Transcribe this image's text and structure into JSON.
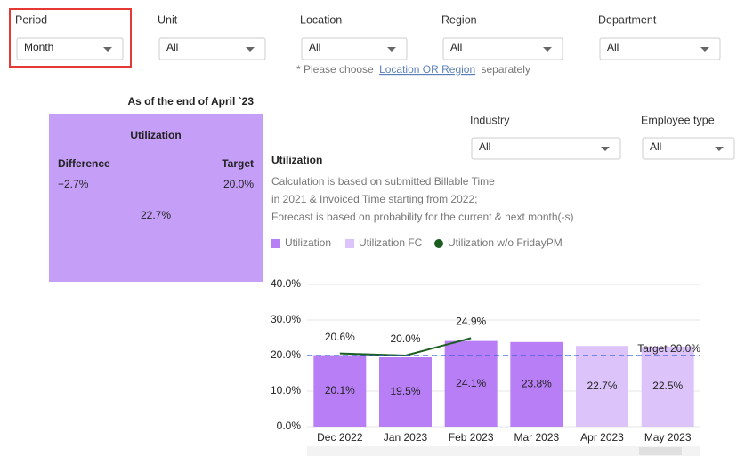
{
  "filters": [
    {
      "label": "Period",
      "value": "Month"
    },
    {
      "label": "Unit",
      "value": "All"
    },
    {
      "label": "Location",
      "value": "All"
    },
    {
      "label": "Region",
      "value": "All"
    },
    {
      "label": "Department",
      "value": "All"
    },
    {
      "label": "Industry",
      "value": "All"
    },
    {
      "label": "Employee type",
      "value": "All"
    }
  ],
  "note": {
    "prefix": "* Please choose",
    "link": "Location OR Region",
    "suffix": "separately"
  },
  "kpi": {
    "as_of": "As of the end of April `23",
    "title": "Utilization",
    "difference_label": "Difference",
    "difference": "+2.7%",
    "target_label": "Target",
    "target": "20.0%",
    "value": "22.7%"
  },
  "chart_data": {
    "type": "bar",
    "title": "Utilization",
    "description": [
      "Calculation is based on submitted Billable Time",
      "in 2021 & Invoiced Time starting from 2022;",
      "Forecast is based on probability for the current & next month(-s)"
    ],
    "categories": [
      "Dec 2022",
      "Jan 2023",
      "Feb 2023",
      "Mar 2023",
      "Apr 2023",
      "May 2023"
    ],
    "series": [
      {
        "name": "Utilization",
        "color": "#b77ef5",
        "values": [
          20.1,
          19.5,
          24.1,
          23.8,
          null,
          null
        ],
        "value_labels": [
          "20.1%",
          "19.5%",
          "24.1%",
          "23.8%",
          null,
          null
        ]
      },
      {
        "name": "Utilization FC",
        "color": "#dcc4fb",
        "values": [
          null,
          null,
          null,
          null,
          22.7,
          22.5
        ],
        "value_labels": [
          null,
          null,
          null,
          null,
          "22.7%",
          "22.5%"
        ]
      },
      {
        "name": "Utilization w/o FridayPM",
        "type": "line",
        "color": "#1b5e20",
        "values": [
          20.6,
          20.0,
          24.9,
          null,
          null,
          null
        ],
        "value_labels": [
          "20.6%",
          "20.0%",
          "24.9%",
          null,
          null,
          null
        ]
      }
    ],
    "target": {
      "value": 20,
      "label": "Target 20.0%",
      "color": "#3b5bdb"
    },
    "ylim": [
      0,
      40
    ],
    "yticks": [
      {
        "value": 0,
        "label": "0.0%"
      },
      {
        "value": 10,
        "label": "10.0%"
      },
      {
        "value": 20,
        "label": "20.0%"
      },
      {
        "value": 30,
        "label": "30.0%"
      },
      {
        "value": 40,
        "label": "40.0%"
      }
    ],
    "grid": true
  }
}
